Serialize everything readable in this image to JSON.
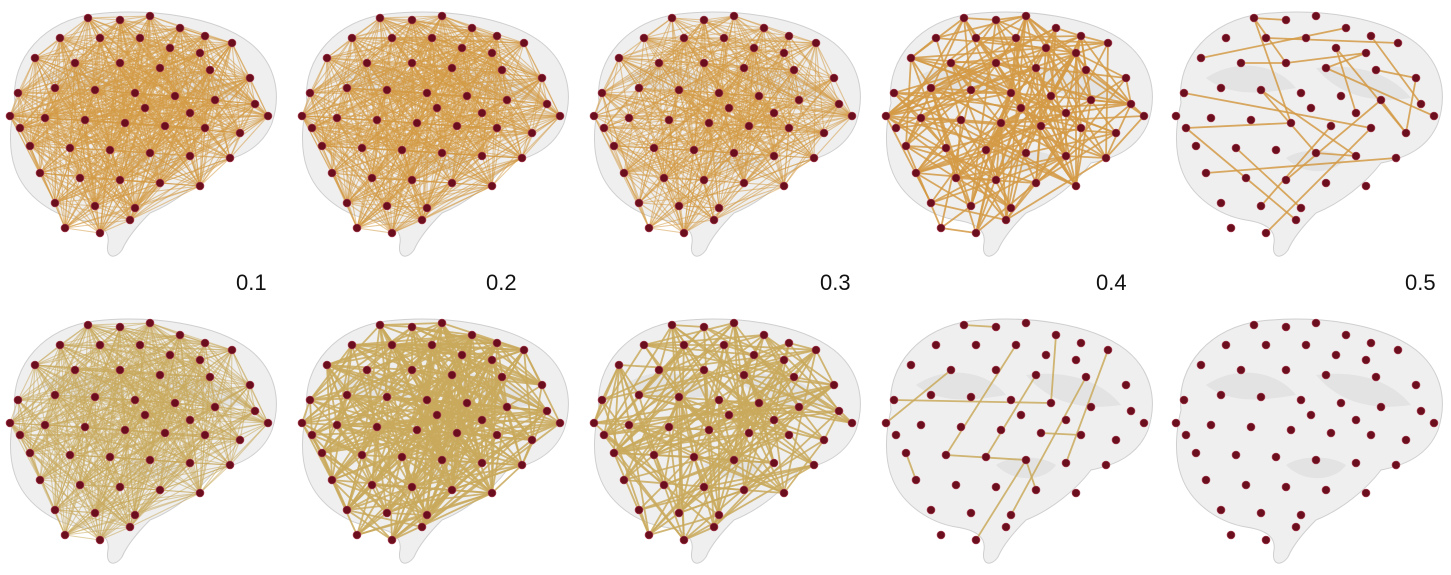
{
  "figure": {
    "thresholds": [
      "0.1",
      "0.2",
      "0.3",
      "0.4",
      "0.5"
    ],
    "rows": [
      {
        "edge_density": [
          1.0,
          0.97,
          0.75,
          0.28,
          0.03
        ]
      },
      {
        "edge_density": [
          0.9,
          0.55,
          0.3,
          0.02,
          0.0
        ]
      }
    ],
    "colors": {
      "node": "#6b0f1e",
      "node_highlight": "#b3465a",
      "edge_row1": "#d49a45",
      "edge_row2": "#c9a95c",
      "brain": "#e2e2e2",
      "label": "#111111"
    }
  }
}
